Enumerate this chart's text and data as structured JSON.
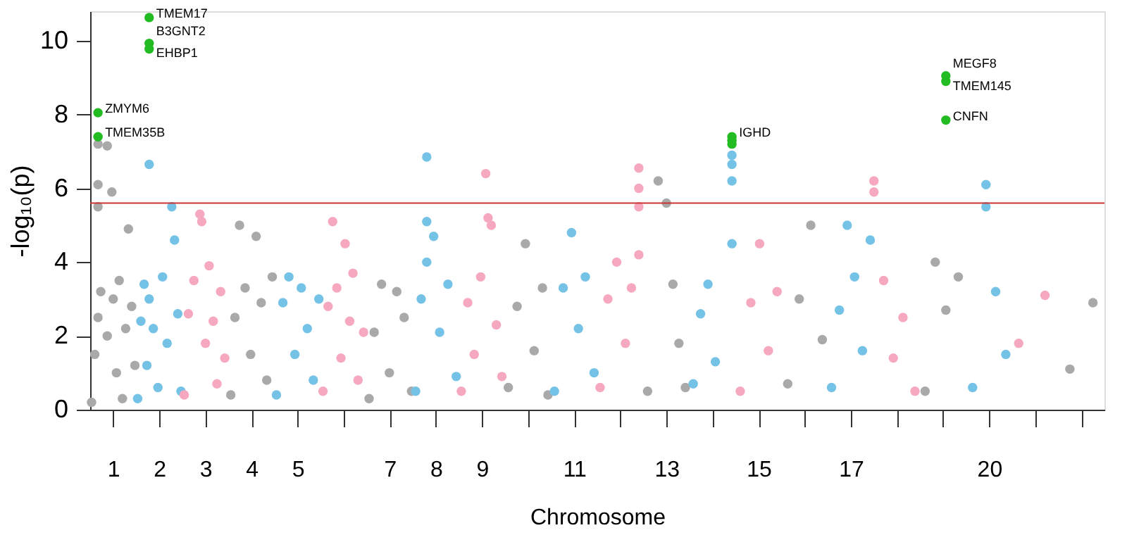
{
  "chart_data": {
    "type": "scatter",
    "xlabel": "Chromosome",
    "ylabel": "-log₁₀(p)",
    "xlim": [
      0.5,
      22.5
    ],
    "ylim": [
      0,
      10.8
    ],
    "yticks": [
      0,
      2,
      4,
      6,
      8,
      10
    ],
    "xticks": [
      1,
      2,
      3,
      4,
      5,
      {
        "value": 6,
        "label": null
      },
      7,
      8,
      9,
      {
        "value": 10,
        "label": null
      },
      11,
      {
        "value": 12,
        "label": null
      },
      13,
      {
        "value": 14,
        "label": null
      },
      15,
      {
        "value": 16,
        "label": null
      },
      17,
      {
        "value": 18,
        "label": null
      },
      {
        "value": 19,
        "label": null
      },
      20,
      {
        "value": 21,
        "label": null
      },
      {
        "value": 22,
        "label": null
      }
    ],
    "marker": "circle",
    "grid": false,
    "legend": false,
    "series": [
      {
        "color": "#a9a9a9",
        "x": [
          0.53,
          0.6,
          0.67,
          0.67,
          0.67,
          0.67,
          0.73,
          0.87,
          0.87,
          0.97,
          1.0,
          1.07,
          1.13,
          1.2,
          1.27,
          1.33,
          1.4,
          1.47,
          3.55,
          3.64,
          3.74,
          3.86,
          3.98,
          4.1,
          4.21,
          4.33,
          4.45,
          6.55,
          6.66,
          6.82,
          6.99,
          7.15,
          7.31,
          7.47,
          9.57,
          9.76,
          9.94,
          10.13,
          10.31,
          10.43,
          12.59,
          12.82,
          13.0,
          13.14,
          13.27,
          13.41,
          15.63,
          15.88,
          16.13,
          16.38,
          18.61,
          18.83,
          19.06,
          19.33,
          21.75,
          22.25
        ],
        "values": [
          0.2,
          1.5,
          2.5,
          7.2,
          6.1,
          5.5,
          3.2,
          7.15,
          2.0,
          5.9,
          3.0,
          1.0,
          3.5,
          0.3,
          2.2,
          4.9,
          2.8,
          1.2,
          0.4,
          2.5,
          5.0,
          3.3,
          1.5,
          4.7,
          2.9,
          0.8,
          3.6,
          0.3,
          2.1,
          3.4,
          1.0,
          3.2,
          2.5,
          0.5,
          0.6,
          2.8,
          4.5,
          1.6,
          3.3,
          0.4,
          0.5,
          6.2,
          5.6,
          3.4,
          1.8,
          0.6,
          0.7,
          3.0,
          5.0,
          1.9,
          0.5,
          4.0,
          2.7,
          3.6,
          1.1,
          2.9
        ]
      },
      {
        "color": "#74c2e6",
        "x": [
          1.53,
          1.6,
          1.67,
          1.73,
          1.78,
          1.78,
          1.87,
          1.97,
          2.07,
          2.17,
          2.27,
          2.33,
          2.4,
          2.47,
          4.54,
          4.68,
          4.81,
          4.94,
          5.08,
          5.21,
          5.34,
          5.46,
          7.56,
          7.68,
          7.8,
          7.8,
          7.8,
          7.95,
          8.08,
          8.26,
          8.44,
          10.57,
          10.76,
          10.94,
          11.09,
          11.24,
          11.43,
          13.58,
          13.74,
          13.9,
          14.06,
          14.42,
          14.42,
          14.42,
          14.42,
          16.58,
          16.75,
          16.92,
          17.08,
          17.25,
          17.42,
          19.64,
          19.93,
          19.93,
          20.14,
          20.36
        ],
        "values": [
          0.3,
          2.4,
          3.4,
          1.2,
          6.65,
          3.0,
          2.2,
          0.6,
          3.6,
          1.8,
          5.5,
          4.6,
          2.6,
          0.5,
          0.4,
          2.9,
          3.6,
          1.5,
          3.3,
          2.2,
          0.8,
          3.0,
          0.5,
          3.0,
          6.85,
          5.1,
          4.0,
          4.7,
          2.1,
          3.4,
          0.9,
          0.5,
          3.3,
          4.8,
          2.2,
          3.6,
          1.0,
          0.7,
          2.6,
          3.4,
          1.3,
          6.9,
          6.65,
          6.2,
          4.5,
          0.6,
          2.7,
          5.0,
          3.6,
          1.6,
          4.6,
          0.6,
          6.1,
          5.5,
          3.2,
          1.5
        ]
      },
      {
        "color": "#f6a8bf",
        "x": [
          2.54,
          2.63,
          2.75,
          2.88,
          2.92,
          3.0,
          3.08,
          3.17,
          3.25,
          3.33,
          3.42,
          5.55,
          5.66,
          5.76,
          5.85,
          5.94,
          6.03,
          6.13,
          6.2,
          6.31,
          6.43,
          8.55,
          8.69,
          8.83,
          8.97,
          9.08,
          9.13,
          9.2,
          9.31,
          9.43,
          11.56,
          11.73,
          11.92,
          12.11,
          12.24,
          12.4,
          12.4,
          12.4,
          12.4,
          14.6,
          14.83,
          15.02,
          15.21,
          15.4,
          17.5,
          17.5,
          17.71,
          17.92,
          18.13,
          18.39,
          20.64,
          21.21
        ],
        "values": [
          0.4,
          2.6,
          3.5,
          5.3,
          5.1,
          1.8,
          3.9,
          2.4,
          0.7,
          3.2,
          1.4,
          0.5,
          2.8,
          5.1,
          3.3,
          1.4,
          4.5,
          2.4,
          3.7,
          0.8,
          2.1,
          0.5,
          2.9,
          1.5,
          3.6,
          6.4,
          5.2,
          5.0,
          2.3,
          0.9,
          0.6,
          3.0,
          4.0,
          1.8,
          3.3,
          6.55,
          6.0,
          5.5,
          4.2,
          0.5,
          2.9,
          4.5,
          1.6,
          3.2,
          6.2,
          5.9,
          3.5,
          1.4,
          2.5,
          0.5,
          1.8,
          3.1
        ]
      },
      {
        "color": "#22bb22",
        "x": [
          0.67,
          0.67,
          1.78,
          1.78,
          1.78,
          14.42,
          14.42,
          14.42,
          19.06,
          19.06,
          19.06
        ],
        "values": [
          8.05,
          7.4,
          10.63,
          9.93,
          9.78,
          7.4,
          7.3,
          7.2,
          9.05,
          8.9,
          7.85
        ]
      }
    ],
    "ref_lines": [
      {
        "axis": "y",
        "value": 5.6,
        "color": "#cc3333"
      }
    ],
    "annotations": [
      {
        "text": "ZMYM6",
        "x": 0.67,
        "y": 8.05
      },
      {
        "text": "TMEM35B",
        "x": 0.67,
        "y": 7.4
      },
      {
        "text": "TMEM17",
        "x": 1.78,
        "y": 10.63
      },
      {
        "text": "B3GNT2",
        "x": 1.78,
        "y": 9.93
      },
      {
        "text": "EHBP1",
        "x": 1.78,
        "y": 9.78
      },
      {
        "text": "IGHD",
        "x": 14.42,
        "y": 7.4
      },
      {
        "text": "MEGF8",
        "x": 19.06,
        "y": 9.05
      },
      {
        "text": "TMEM145",
        "x": 19.06,
        "y": 8.9
      },
      {
        "text": "CNFN",
        "x": 19.06,
        "y": 7.85
      }
    ]
  }
}
